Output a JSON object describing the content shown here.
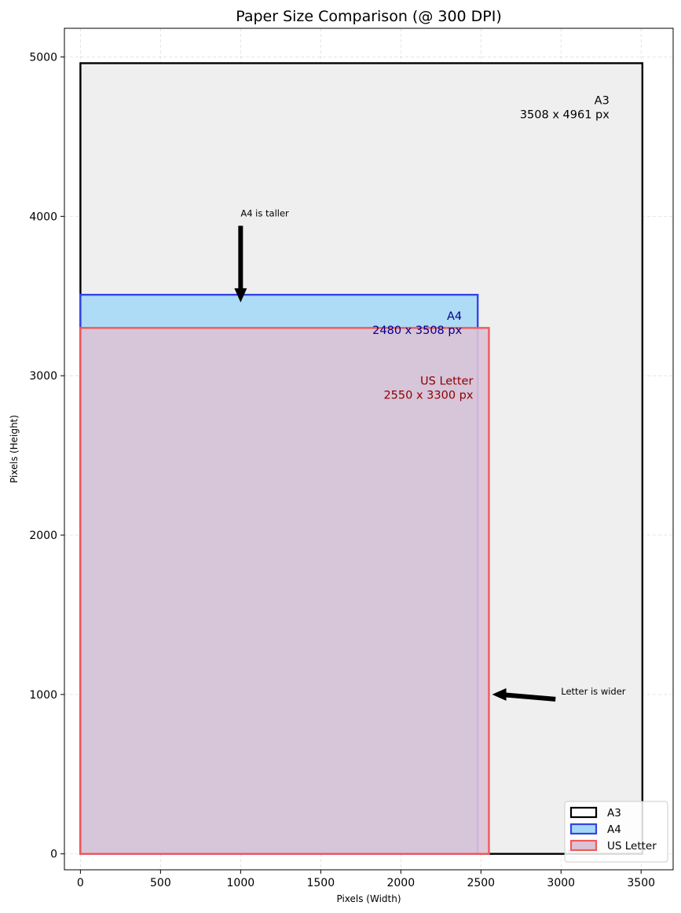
{
  "chart_data": {
    "type": "rectangle-comparison",
    "title": "Paper Size Comparison (@ 300 DPI)",
    "xlabel": "Pixels (Width)",
    "ylabel": "Pixels (Height)",
    "xlim": [
      -100,
      3700
    ],
    "ylim": [
      -100,
      5180
    ],
    "xticks": [
      "0",
      "500",
      "1000",
      "1500",
      "2000",
      "2500",
      "3000",
      "3500"
    ],
    "yticks": [
      "0",
      "1000",
      "2000",
      "3000",
      "4000",
      "5000"
    ],
    "grid": true,
    "legend_position": "lower-right",
    "series": [
      {
        "name": "A3",
        "width": 3508,
        "height": 4961,
        "label_name": "A3",
        "label_dims": "3508 x 4961 px",
        "edge_color": "#000000",
        "fill_color": "#efefef",
        "text_color": "#000000"
      },
      {
        "name": "A4",
        "width": 2480,
        "height": 3508,
        "label_name": "A4",
        "label_dims": "2480 x 3508 px",
        "edge_color": "#3344e6",
        "fill_color": "#a6d8f6",
        "text_color": "#00008b"
      },
      {
        "name": "US Letter",
        "width": 2550,
        "height": 3300,
        "label_name": "US Letter",
        "label_dims": "2550 x 3300 px",
        "edge_color": "#f05a5a",
        "fill_color": "#dbc2d6",
        "text_color": "#8b0000"
      }
    ],
    "annotations": [
      {
        "text": "A4 is taller",
        "text_x": 1000,
        "text_y": 4000,
        "arrow_to_x": 1000,
        "arrow_to_y": 3460
      },
      {
        "text": "Letter is wider",
        "text_x": 3000,
        "text_y": 1000,
        "arrow_to_x": 2570,
        "arrow_to_y": 1000
      }
    ]
  }
}
